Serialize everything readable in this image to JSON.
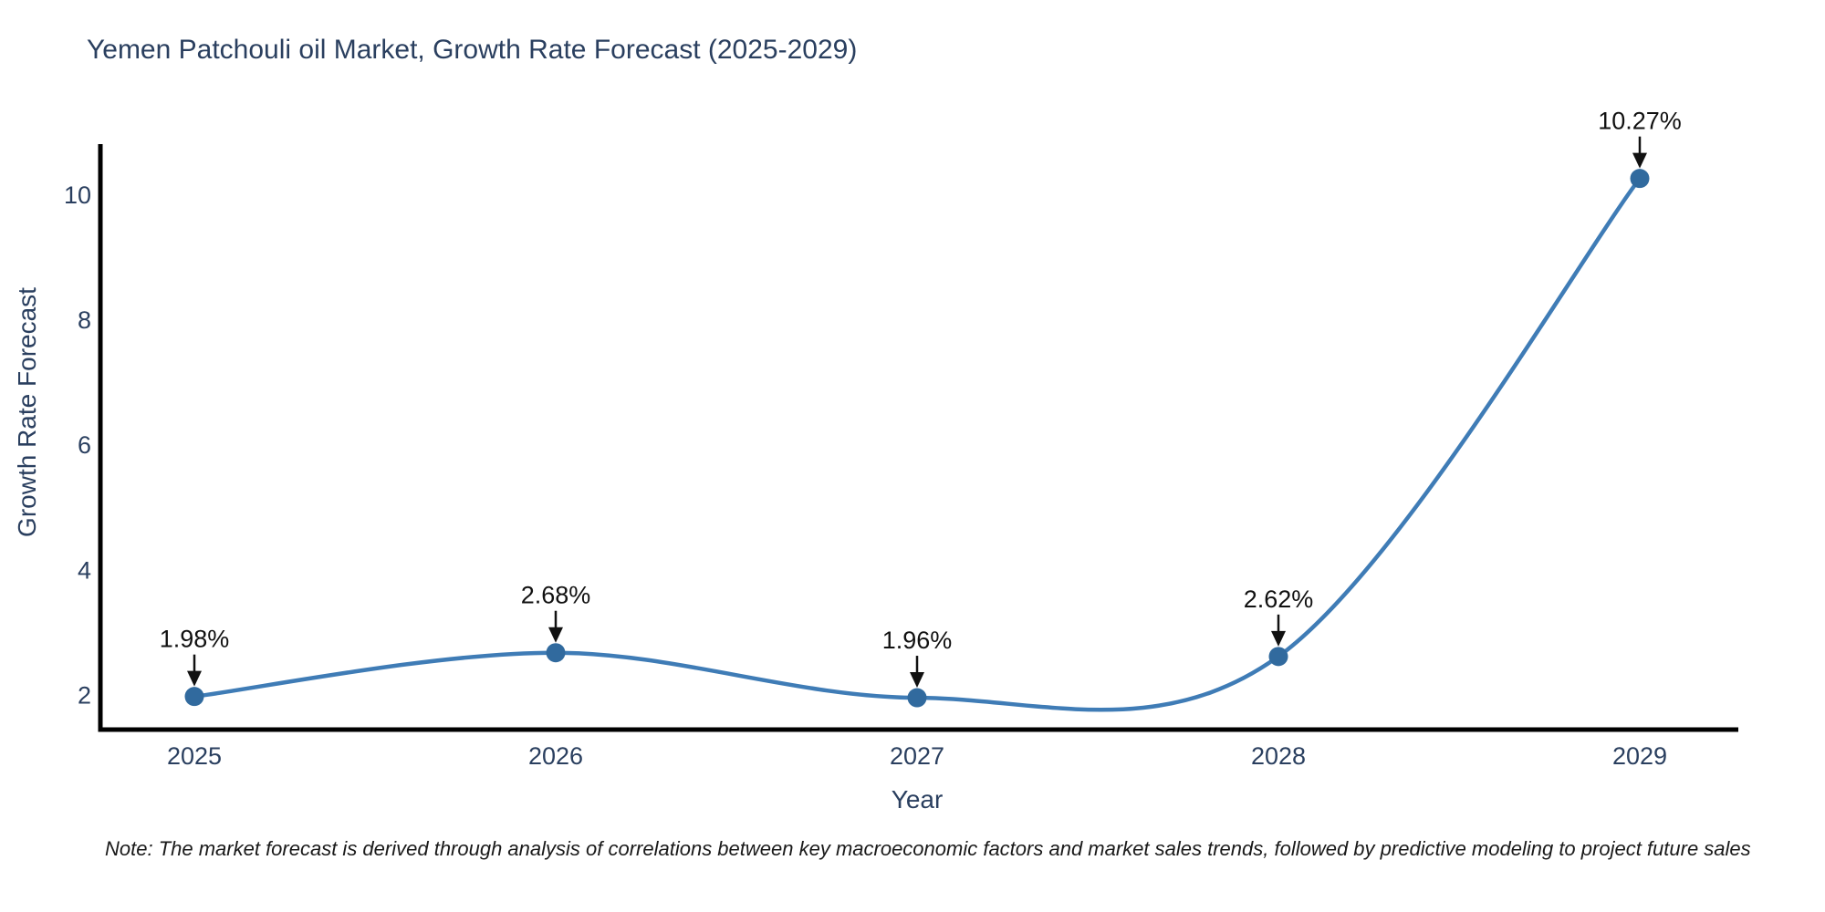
{
  "title": "Yemen Patchouli oil Market, Growth Rate Forecast (2025-2029)",
  "note": "Note: The market forecast is derived through analysis of correlations between key macroeconomic factors and market sales trends, followed by predictive modeling to project future sales",
  "chart_data": {
    "type": "line",
    "title": "Yemen Patchouli oil Market, Growth Rate Forecast (2025-2029)",
    "xlabel": "Year",
    "ylabel": "Growth Rate Forecast",
    "categories": [
      "2025",
      "2026",
      "2027",
      "2028",
      "2029"
    ],
    "series": [
      {
        "name": "Growth Rate Forecast",
        "values": [
          1.98,
          2.68,
          1.96,
          2.62,
          10.27
        ]
      }
    ],
    "point_labels": [
      "1.98%",
      "2.68%",
      "1.96%",
      "2.62%",
      "10.27%"
    ],
    "yticks": [
      2,
      4,
      6,
      8,
      10
    ],
    "ylim": [
      1.45,
      10.82
    ],
    "line_shape": "spline",
    "grid": false,
    "legend_position": "none",
    "colors": {
      "line": "#3f7cb6",
      "marker": "#316a9e",
      "axis_line": "#000000",
      "axis_text": "#2a3f5f",
      "annotation_text": "#111111",
      "arrow": "#111111",
      "background": "#ffffff"
    }
  }
}
